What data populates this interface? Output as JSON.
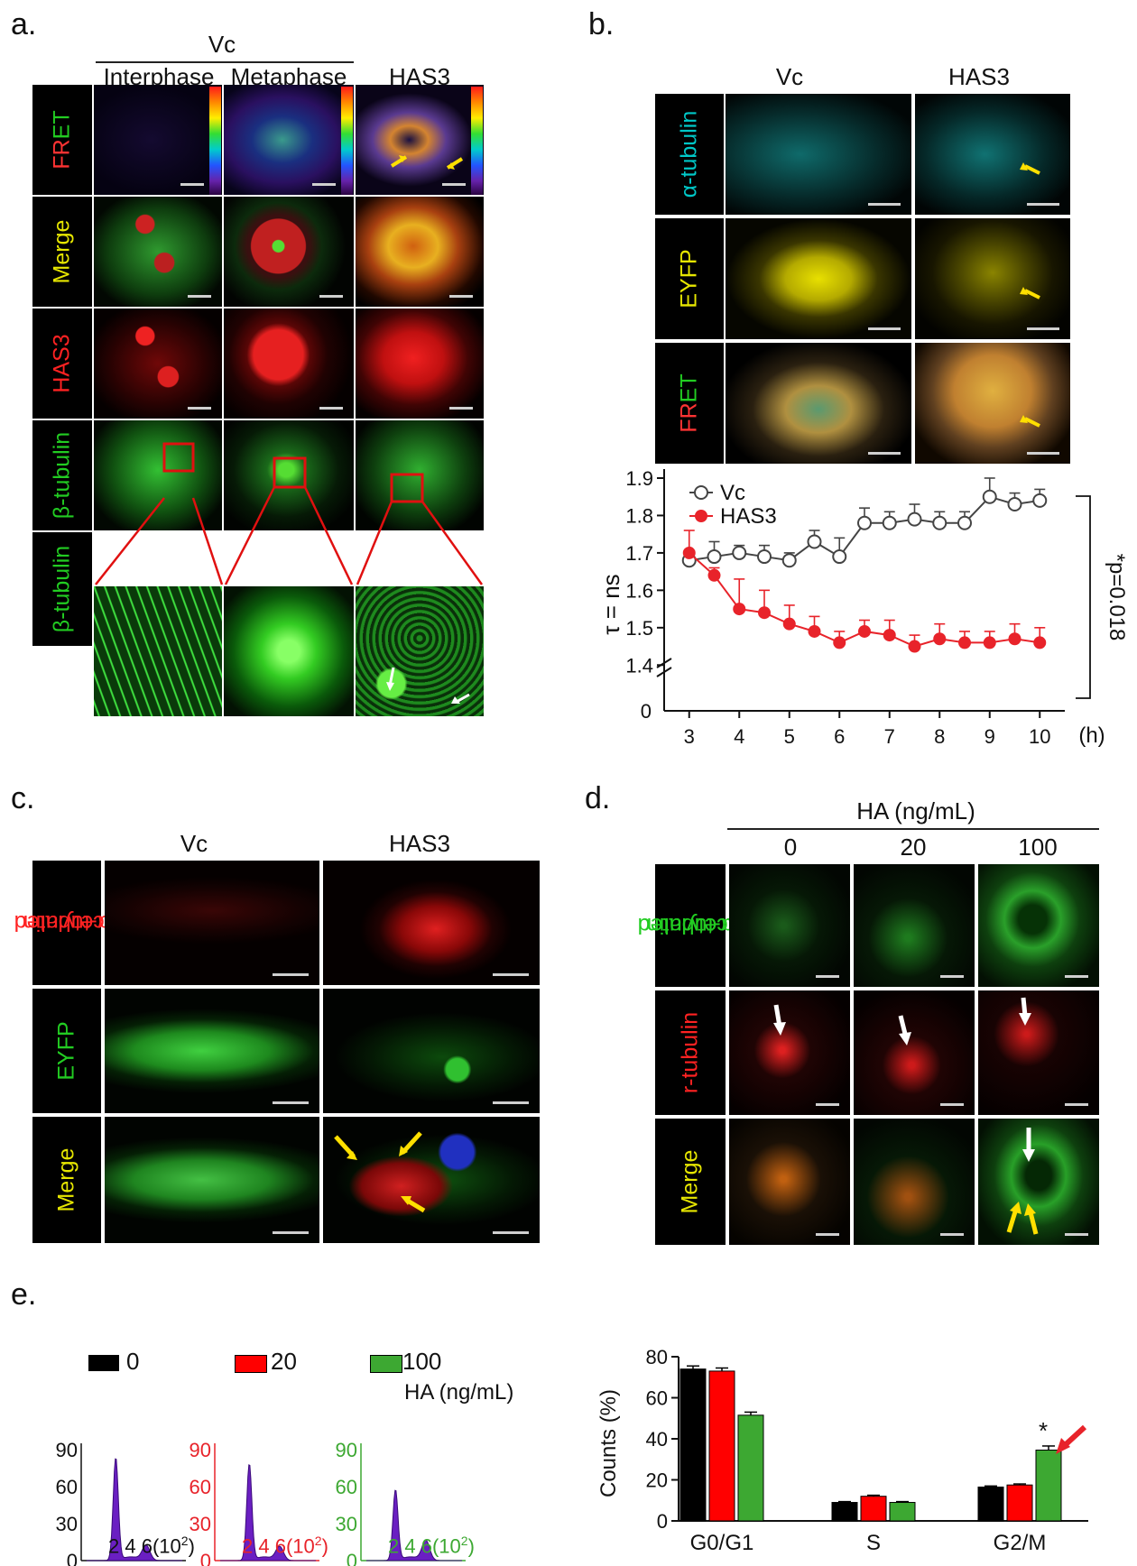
{
  "panel_a": {
    "label": "a.",
    "group_header": "Vc",
    "columns": [
      "Interphase",
      "Metaphase",
      "HAS3"
    ],
    "rows": [
      {
        "prefix": "FR",
        "suffix": "ET",
        "prefix_color": "#ff3333",
        "suffix_color": "#22cc22"
      },
      {
        "text": "Merge",
        "color": "#e6e600"
      },
      {
        "text": "HAS3",
        "color": "#ff2222"
      },
      {
        "text": "β-tubulin",
        "color": "#22cc22"
      },
      {
        "text": "β-tubulin",
        "color": "#22cc22"
      }
    ]
  },
  "panel_b": {
    "label": "b.",
    "columns": [
      "Vc",
      "HAS3"
    ],
    "rows": [
      {
        "text": "α-tubulin",
        "color": "#00c8c8"
      },
      {
        "text": "EYFP",
        "color": "#e6e600"
      },
      {
        "prefix": "FR",
        "suffix": "ET",
        "prefix_color": "#ff3333",
        "suffix_color": "#22cc22"
      }
    ]
  },
  "panel_c": {
    "label": "c.",
    "columns": [
      "Vc",
      "HAS3"
    ],
    "rows": [
      {
        "line1": "Acetylated",
        "line2": "α-tubulin",
        "color": "#ff2222"
      },
      {
        "text": "EYFP",
        "color": "#22cc22"
      },
      {
        "text": "Merge",
        "color": "#e6e600"
      }
    ]
  },
  "panel_d": {
    "label": "d.",
    "group_header": "HA (ng/mL)",
    "columns": [
      "0",
      "20",
      "100"
    ],
    "rows": [
      {
        "line1": "Acetylated",
        "line2": "α-tubulin",
        "color": "#22cc22"
      },
      {
        "text": "r-tubulin",
        "color": "#ff2222"
      },
      {
        "text": "Merge",
        "color": "#e6e600"
      }
    ]
  },
  "panel_e": {
    "label": "e.",
    "legend": [
      {
        "label": "0",
        "color": "#000000"
      },
      {
        "label": "20",
        "color": "#ff0000"
      },
      {
        "label": "100",
        "color": "#3da832"
      }
    ],
    "legend_title": "HA (ng/mL)"
  },
  "chart_data": [
    {
      "type": "line",
      "panel": "b",
      "ylabel": "τ = ns",
      "x_unit": "(h)",
      "x": [
        3,
        3.5,
        4,
        4.5,
        5,
        5.5,
        6,
        6.5,
        7,
        7.5,
        8,
        8.5,
        9,
        9.5,
        10
      ],
      "xticks": [
        3,
        4,
        5,
        6,
        7,
        8,
        9,
        10
      ],
      "yticks": [
        1.4,
        1.5,
        1.6,
        1.7,
        1.8,
        1.9
      ],
      "ylim": [
        1.35,
        1.9
      ],
      "y_zero_label": "0",
      "axis_break": true,
      "series": [
        {
          "name": "Vc",
          "color": "#444444",
          "marker": "open-circle",
          "values": [
            1.68,
            1.69,
            1.7,
            1.69,
            1.68,
            1.73,
            1.69,
            1.78,
            1.78,
            1.79,
            1.78,
            1.78,
            1.85,
            1.83,
            1.84
          ],
          "errors": [
            0.01,
            0.04,
            0.02,
            0.03,
            0.02,
            0.03,
            0.05,
            0.04,
            0.03,
            0.04,
            0.03,
            0.03,
            0.05,
            0.03,
            0.03
          ]
        },
        {
          "name": "HAS3",
          "color": "#e8232a",
          "marker": "filled-circle",
          "values": [
            1.7,
            1.64,
            1.55,
            1.54,
            1.51,
            1.49,
            1.46,
            1.49,
            1.48,
            1.45,
            1.47,
            1.46,
            1.46,
            1.47,
            1.46
          ],
          "errors": [
            0.06,
            0.02,
            0.08,
            0.06,
            0.05,
            0.04,
            0.03,
            0.03,
            0.04,
            0.03,
            0.04,
            0.03,
            0.03,
            0.04,
            0.04
          ]
        }
      ],
      "annotation": "*p=0.018"
    },
    {
      "type": "area",
      "panel": "e",
      "name": "histograms",
      "yticks": [
        0,
        30,
        60,
        90
      ],
      "xtick_labels": [
        "2",
        "4",
        "6(10",
        "2",
        ")"
      ],
      "ylim": [
        0,
        95
      ],
      "fill_color": "#6a1fc2",
      "panels": [
        {
          "label": "0",
          "axis_color": "#111111",
          "peak1": 83,
          "peak2": 12
        },
        {
          "label": "20",
          "axis_color": "#e8232a",
          "peak1": 78,
          "peak2": 11
        },
        {
          "label": "100",
          "axis_color": "#3da832",
          "peak1": 57,
          "peak2": 16
        }
      ]
    },
    {
      "type": "bar",
      "panel": "e",
      "categories": [
        "G0/G1",
        "S",
        "G2/M"
      ],
      "ylabel": "Counts (%)",
      "ylim": [
        0,
        80
      ],
      "yticks": [
        0,
        20,
        40,
        60,
        80
      ],
      "series": [
        {
          "name": "0",
          "color": "#000000",
          "values": [
            74,
            9,
            16.5
          ],
          "errors": [
            1.5,
            0.4,
            0.5
          ]
        },
        {
          "name": "20",
          "color": "#ff0000",
          "values": [
            73,
            12,
            17.5
          ],
          "errors": [
            1.5,
            0.5,
            0.5
          ]
        },
        {
          "name": "100",
          "color": "#3da832",
          "values": [
            51.5,
            9,
            34.5
          ],
          "errors": [
            1.5,
            0.4,
            2
          ]
        }
      ],
      "annotation": "*"
    }
  ]
}
